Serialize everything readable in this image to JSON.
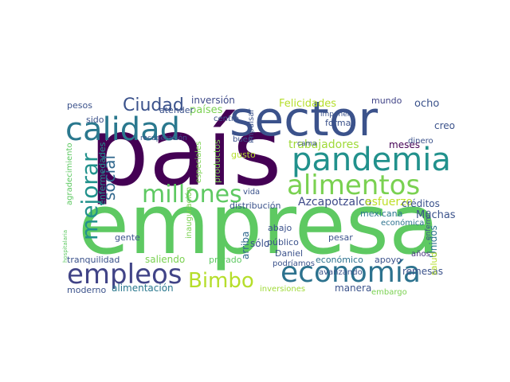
{
  "word_cloud": {
    "words": [
      {
        "text": "empresa",
        "color": "#5ec962"
      },
      {
        "text": "país",
        "color": "#440154"
      },
      {
        "text": "sector",
        "color": "#3b528b"
      },
      {
        "text": "pandemia",
        "color": "#21918c"
      },
      {
        "text": "calidad",
        "color": "#2a788e"
      },
      {
        "text": "alimentos",
        "color": "#7ad151"
      },
      {
        "text": "economía",
        "color": "#2c728e"
      },
      {
        "text": "empleos",
        "color": "#414487"
      },
      {
        "text": "millones",
        "color": "#5ec962"
      },
      {
        "text": "mejorar",
        "color": "#21918c"
      },
      {
        "text": "Bimbo",
        "color": "#b5de2b"
      },
      {
        "text": "Ciudad",
        "color": "#3b528b"
      },
      {
        "text": "social",
        "color": "#31688e"
      },
      {
        "text": "Azcapotzalco",
        "color": "#3e4a89"
      },
      {
        "text": "esfuerzo",
        "color": "#bddf26"
      },
      {
        "text": "trabajadores",
        "color": "#a0da39"
      },
      {
        "text": "Felicidades",
        "color": "#b5de2b"
      },
      {
        "text": "países",
        "color": "#7ad151"
      },
      {
        "text": "inversión",
        "color": "#3e4a89"
      },
      {
        "text": "ocho",
        "color": "#3b528b"
      },
      {
        "text": "mundo",
        "color": "#414487"
      },
      {
        "text": "meses",
        "color": "#440154"
      },
      {
        "text": "creo",
        "color": "#3b528b"
      },
      {
        "text": "mexicana",
        "color": "#2a788e"
      },
      {
        "text": "Muchas",
        "color": "#3b528b"
      },
      {
        "text": "créditos",
        "color": "#3b528b"
      },
      {
        "text": "Unidos",
        "color": "#2c728e"
      },
      {
        "text": "remesas",
        "color": "#3b528b"
      },
      {
        "text": "salud",
        "color": "#b5de2b"
      },
      {
        "text": "apoyo",
        "color": "#3b528b"
      },
      {
        "text": "años",
        "color": "#46337e"
      },
      {
        "text": "manera",
        "color": "#3b528b"
      },
      {
        "text": "económico",
        "color": "#2c728e"
      },
      {
        "text": "económica",
        "color": "#2c728e"
      },
      {
        "text": "abajo",
        "color": "#3b528b"
      },
      {
        "text": "pesar",
        "color": "#3b528b"
      },
      {
        "text": "Daniel",
        "color": "#3b528b"
      },
      {
        "text": "podríamos",
        "color": "#3b528b"
      },
      {
        "text": "avanzando",
        "color": "#3b528b"
      },
      {
        "text": "público",
        "color": "#3b528b"
      },
      {
        "text": "sólo",
        "color": "#3b528b"
      },
      {
        "text": "arriba",
        "color": "#31688e"
      },
      {
        "text": "privado",
        "color": "#5ec962"
      },
      {
        "text": "saliendo",
        "color": "#7ad151"
      },
      {
        "text": "gente",
        "color": "#3b528b"
      },
      {
        "text": "tranquilidad",
        "color": "#3b528b"
      },
      {
        "text": "alimentación",
        "color": "#2a788e"
      },
      {
        "text": "moderno",
        "color": "#3b528b"
      },
      {
        "text": "inversiones",
        "color": "#a0da39"
      },
      {
        "text": "embargo",
        "color": "#7ad151"
      },
      {
        "text": "distribución",
        "color": "#3b528b"
      },
      {
        "text": "vida",
        "color": "#3b528b"
      },
      {
        "text": "gusto",
        "color": "#b5de2b"
      },
      {
        "text": "formal",
        "color": "#3b528b"
      },
      {
        "text": "enfermedades",
        "color": "#21918c"
      },
      {
        "text": "sido",
        "color": "#3b528b"
      },
      {
        "text": "pesos",
        "color": "#3b528b"
      },
      {
        "text": "atender",
        "color": "#3b528b"
      },
      {
        "text": "impulsar",
        "color": "#3b528b"
      },
      {
        "text": "centro",
        "color": "#3b528b"
      },
      {
        "text": "buen",
        "color": "#3b528b"
      },
      {
        "text": "dinero",
        "color": "#3b528b"
      },
      {
        "text": "productos",
        "color": "#7ad151"
      },
      {
        "text": "inauguración",
        "color": "#7ad151"
      },
      {
        "text": "especiales",
        "color": "#7ad151"
      },
      {
        "text": "cama",
        "color": "#3b528b"
      },
      {
        "text": "imponer",
        "color": "#3b528b"
      },
      {
        "text": "enfermo",
        "color": "#3b528b"
      },
      {
        "text": "recuperación",
        "color": "#3b528b"
      },
      {
        "text": "agradecimiento",
        "color": "#5ec962"
      },
      {
        "text": "hospitalaria",
        "color": "#5ec962"
      }
    ]
  }
}
